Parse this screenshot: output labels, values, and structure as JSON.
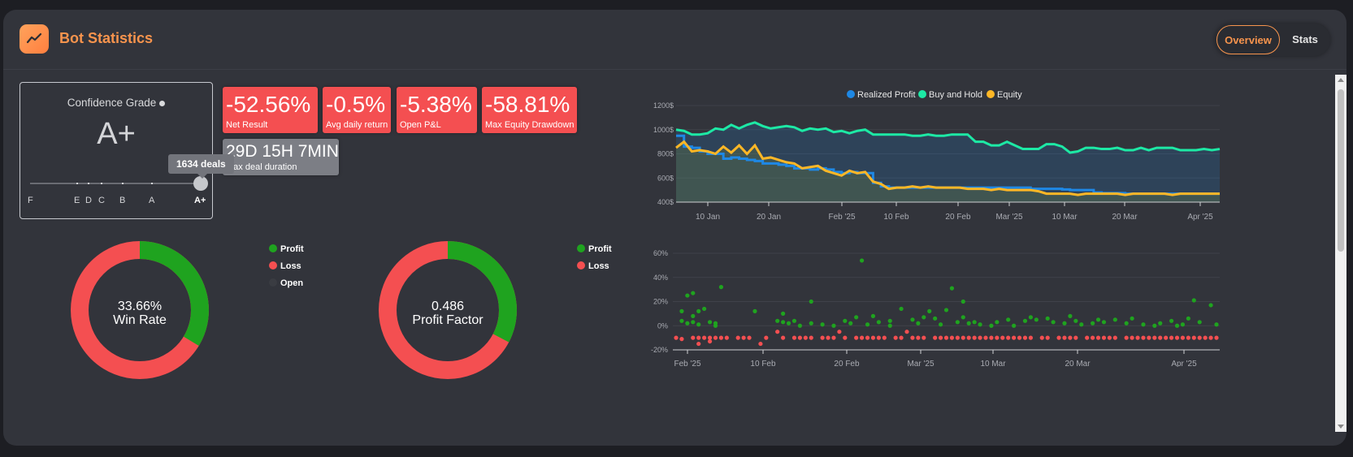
{
  "header": {
    "title": "Bot Statistics",
    "icon": "trend-chart-icon",
    "tabs": [
      "Overview",
      "Stats"
    ],
    "active_tab": "Overview"
  },
  "grade": {
    "label": "Confidence Grade",
    "value": "A+",
    "ticks": [
      "F",
      "E",
      "D",
      "C",
      "B",
      "A",
      "A+"
    ],
    "tooltip": "1634 deals"
  },
  "stats": [
    {
      "value": "-52.56%",
      "label": "Net Result"
    },
    {
      "value": "-0.5%",
      "label": "Avg daily return"
    },
    {
      "value": "-5.38%",
      "label": "Open P&L"
    },
    {
      "value": "-58.81%",
      "label": "Max Equity Drawdown"
    }
  ],
  "duration": {
    "value": "29D 15H 7MIN",
    "label": "Max deal duration"
  },
  "win_rate": {
    "value": "33.66%",
    "label": "Win Rate",
    "legend": [
      "Profit",
      "Loss",
      "Open"
    ],
    "profit_fraction": 0.3366
  },
  "profit_factor": {
    "value": "0.486",
    "label": "Profit Factor",
    "legend": [
      "Profit",
      "Loss"
    ],
    "profit_fraction": 0.327
  },
  "colors": {
    "accent": "#f7944d",
    "profit": "#1fa31f",
    "loss": "#f44f51",
    "open": "#3a3c42",
    "realized": "#1e88e5",
    "hold": "#1de9a5",
    "equity": "#ffb726"
  },
  "chart_data": [
    {
      "type": "line",
      "series": [
        {
          "name": "Realized Profit",
          "values": [
            950,
            860,
            850,
            820,
            800,
            800,
            760,
            770,
            760,
            750,
            740,
            720,
            720,
            710,
            700,
            680,
            680,
            670,
            680,
            670,
            650,
            640,
            650,
            640,
            640,
            560,
            530,
            520,
            520,
            520,
            520,
            520,
            520,
            520,
            520,
            520,
            520,
            520,
            520,
            520,
            520,
            520,
            520,
            520,
            520,
            510,
            510,
            510,
            510,
            505,
            500,
            500,
            500,
            480,
            475,
            475,
            475,
            470,
            470,
            470,
            470,
            470,
            470,
            470,
            470,
            470,
            470,
            470,
            470,
            470
          ]
        },
        {
          "name": "Buy and Hold",
          "values": [
            1000,
            990,
            960,
            960,
            970,
            1010,
            1000,
            1040,
            1010,
            1040,
            1060,
            1030,
            1010,
            1020,
            1030,
            1020,
            990,
            1010,
            1000,
            1010,
            980,
            990,
            970,
            990,
            1000,
            960,
            960,
            960,
            960,
            960,
            950,
            950,
            960,
            950,
            950,
            960,
            960,
            960,
            900,
            900,
            870,
            870,
            900,
            870,
            840,
            840,
            840,
            880,
            880,
            860,
            810,
            820,
            850,
            850,
            840,
            840,
            850,
            830,
            830,
            850,
            830,
            850,
            850,
            850,
            830,
            830,
            830,
            840,
            830,
            840
          ]
        },
        {
          "name": "Equity",
          "values": [
            850,
            900,
            820,
            830,
            820,
            800,
            860,
            810,
            870,
            800,
            870,
            760,
            770,
            750,
            730,
            720,
            680,
            690,
            700,
            660,
            640,
            620,
            660,
            640,
            650,
            570,
            550,
            510,
            520,
            520,
            530,
            520,
            530,
            520,
            520,
            520,
            520,
            510,
            510,
            510,
            500,
            510,
            500,
            500,
            500,
            500,
            490,
            470,
            470,
            470,
            470,
            460,
            470,
            470,
            470,
            470,
            470,
            460,
            470,
            470,
            470,
            470,
            470,
            460,
            470,
            470,
            470,
            470,
            470,
            470
          ]
        }
      ],
      "x_ticks": [
        "10 Jan",
        "20 Jan",
        "Feb '25",
        "10 Feb",
        "20 Feb",
        "Mar '25",
        "10 Mar",
        "20 Mar",
        "Apr '25"
      ],
      "y_ticks": [
        "400$",
        "600$",
        "800$",
        "1000$",
        "1200$"
      ],
      "ylim": [
        400,
        1200
      ],
      "legend": "top-center"
    },
    {
      "type": "scatter",
      "x_ticks": [
        "Feb '25",
        "10 Feb",
        "20 Feb",
        "Mar '25",
        "10 Mar",
        "20 Mar",
        "Apr '25"
      ],
      "y_ticks": [
        "-20%",
        "0%",
        "20%",
        "40%",
        "60%"
      ],
      "ylim": [
        -20,
        60
      ],
      "series": [
        {
          "name": "Profit",
          "x_day": [
            1,
            1,
            2,
            2,
            3,
            3,
            3,
            4,
            4,
            5,
            6,
            7,
            7,
            8,
            14,
            18,
            19,
            19,
            20,
            21,
            22,
            24,
            24,
            26,
            28,
            30,
            31,
            32,
            33,
            34,
            35,
            36,
            38,
            38,
            40,
            42,
            43,
            44,
            45,
            46,
            47,
            48,
            49,
            50,
            51,
            51,
            52,
            53,
            54,
            56,
            57,
            59,
            60,
            62,
            63,
            64,
            66,
            67,
            69,
            70,
            71,
            72,
            74,
            75,
            76,
            78,
            80,
            81,
            83,
            85,
            86,
            88,
            89,
            90,
            91,
            92,
            93,
            95,
            96
          ],
          "y": [
            4,
            12,
            2,
            25,
            3,
            27,
            8,
            1,
            12,
            14,
            3,
            2,
            0,
            32,
            12,
            4,
            3,
            10,
            2,
            4,
            0,
            20,
            2,
            1,
            0,
            4,
            2,
            7,
            54,
            1,
            8,
            3,
            0,
            4,
            14,
            5,
            2,
            7,
            12,
            6,
            1,
            13,
            31,
            3,
            20,
            7,
            2,
            3,
            1,
            0,
            3,
            5,
            0,
            4,
            7,
            5,
            6,
            3,
            2,
            8,
            4,
            1,
            2,
            5,
            3,
            5,
            2,
            6,
            1,
            0,
            2,
            4,
            0,
            1,
            6,
            21,
            3,
            17,
            1
          ]
        },
        {
          "name": "Loss",
          "x_day": [
            0,
            1,
            3,
            4,
            4,
            5,
            6,
            6,
            7,
            8,
            9,
            11,
            12,
            13,
            15,
            16,
            18,
            19,
            21,
            22,
            23,
            24,
            26,
            27,
            28,
            29,
            30,
            32,
            33,
            34,
            35,
            36,
            37,
            39,
            40,
            41,
            42,
            43,
            44,
            46,
            47,
            48,
            49,
            50,
            51,
            52,
            53,
            54,
            55,
            56,
            57,
            58,
            59,
            60,
            61,
            62,
            63,
            65,
            66,
            68,
            69,
            70,
            71,
            73,
            74,
            75,
            76,
            77,
            78,
            80,
            81,
            82,
            83,
            84,
            85,
            86,
            87,
            88,
            89,
            90,
            91,
            92,
            93,
            94,
            95,
            96
          ],
          "y": [
            -10,
            -11,
            -10,
            -10,
            -15,
            -10,
            -10,
            -13,
            -10,
            -10,
            -10,
            -10,
            -10,
            -10,
            -15,
            -10,
            -5,
            -10,
            -10,
            -10,
            -10,
            -10,
            -10,
            -10,
            -10,
            -5,
            -10,
            -10,
            -10,
            -10,
            -10,
            -10,
            -10,
            -10,
            -10,
            -5,
            -10,
            -10,
            -10,
            -10,
            -10,
            -10,
            -10,
            -10,
            -10,
            -10,
            -10,
            -10,
            -10,
            -10,
            -10,
            -10,
            -10,
            -10,
            -10,
            -10,
            -10,
            -10,
            -10,
            -10,
            -10,
            -10,
            -10,
            -10,
            -10,
            -10,
            -10,
            -10,
            -10,
            -10,
            -10,
            -10,
            -10,
            -10,
            -10,
            -10,
            -10,
            -10,
            -10,
            -10,
            -10,
            -10,
            -10,
            -10,
            -10,
            -10
          ]
        }
      ]
    }
  ]
}
